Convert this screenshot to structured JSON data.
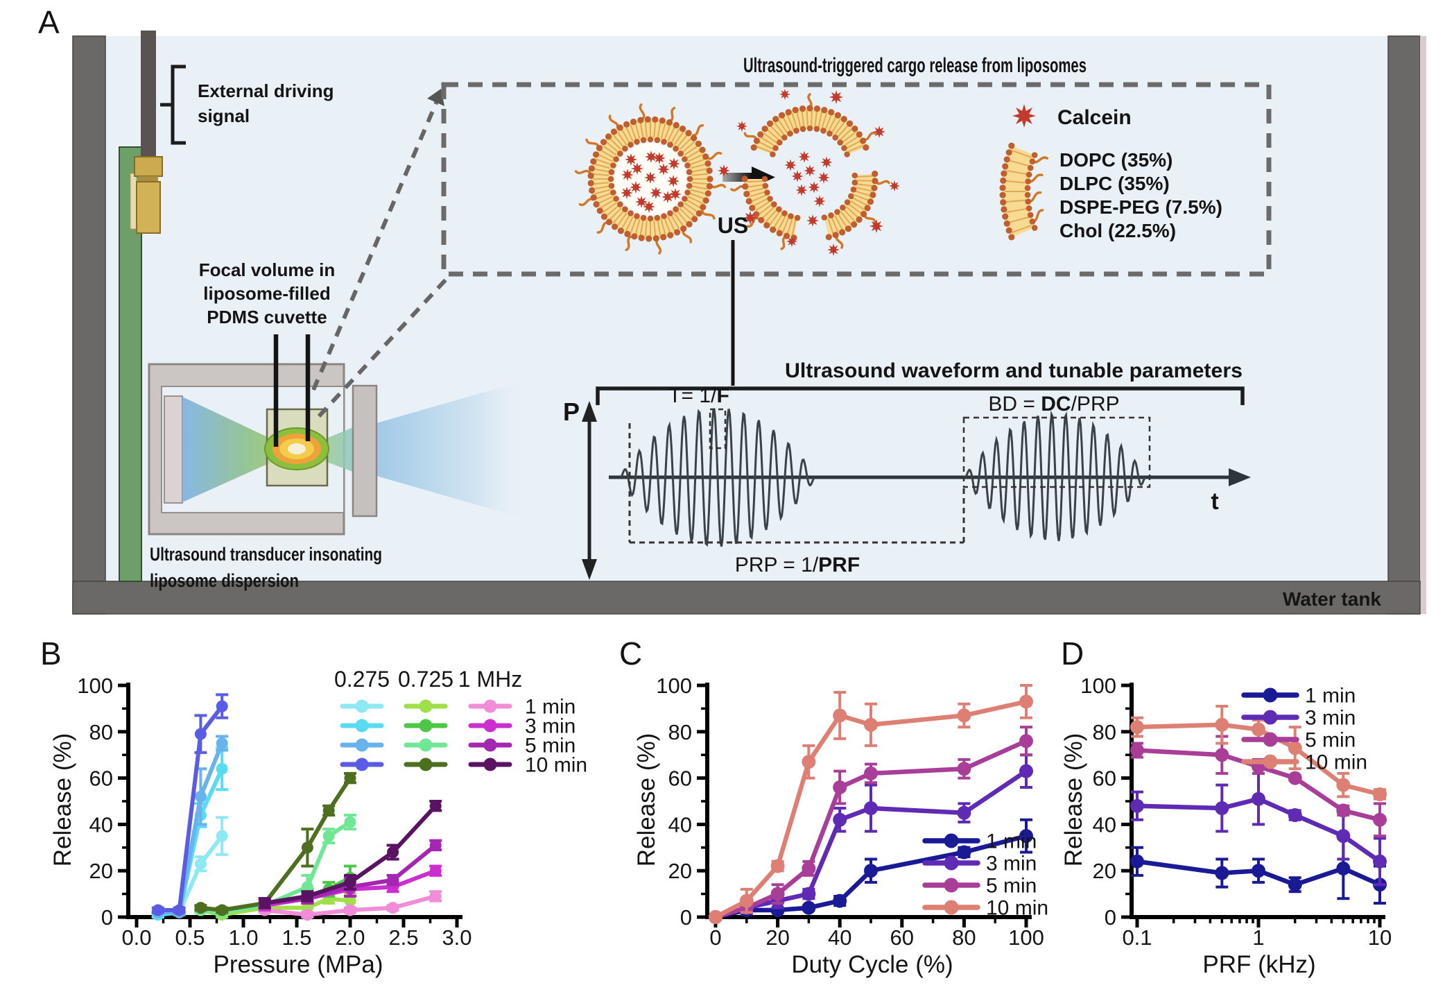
{
  "panel_a": {
    "label": "A",
    "water_tank_label": "Water tank",
    "background_color": "#e9f0f6",
    "tank_wall_color": "#6b6968",
    "external_driving_signal_lines": [
      "External driving",
      "signal"
    ],
    "focal_volume_lines": [
      "Focal volume in",
      "liposome-filled",
      "PDMS cuvette"
    ],
    "transducer_caption_lines": [
      "Ultrasound transducer insonating",
      "liposome dispersion"
    ],
    "inset": {
      "title": "Ultrasound-triggered cargo release from liposomes",
      "us_label": "US",
      "calcein_label": "Calcein",
      "calcein_color": "#c23a2b",
      "lipid_membrane_color": "#f8da92",
      "lipid_components": [
        "DOPC (35%)",
        "DLPC (35%)",
        "DSPE-PEG (7.5%)",
        "Chol (22.5%)"
      ]
    },
    "waveform": {
      "title": "Ultrasound waveform and tunable parameters",
      "pressure_axis_label": "P",
      "time_axis_label": "t",
      "period_label": {
        "pre": "T= 1/",
        "bold": "F",
        "post": ""
      },
      "burst_duration_label": {
        "pre": "BD = ",
        "bold": "DC",
        "post": "/PRP"
      },
      "pulse_repetition_label": {
        "pre": "PRP = 1/",
        "bold": "PRF",
        "post": ""
      }
    }
  },
  "chart_data": [
    {
      "id": "B",
      "panel_label": "B",
      "type": "line",
      "xlabel": "Pressure (MPa)",
      "ylabel": "Release (%)",
      "xlim": [
        0,
        3
      ],
      "ylim": [
        0,
        100
      ],
      "xticks": [
        0,
        0.5,
        1,
        1.5,
        2,
        2.5,
        3
      ],
      "xtick_labels": [
        "0.0",
        "0.5",
        "1.0",
        "1.5",
        "2.0",
        "2.5",
        "3.0"
      ],
      "yticks": [
        0,
        20,
        40,
        60,
        80,
        100
      ],
      "legend": {
        "group_headers": [
          {
            "label": "0.275",
            "color": "#2b2fd4"
          },
          {
            "label": "0.725",
            "color": "#4c7a55"
          },
          {
            "label": "1 MHz",
            "color": "#8c2596"
          }
        ],
        "row_labels": [
          "1 min",
          "3 min",
          "5 min",
          "10 min"
        ]
      },
      "series": [
        {
          "name": "0.275 MHz 1 min",
          "frequency_mhz": 0.275,
          "duration": "1 min",
          "color": "#8fe9f2",
          "x": [
            0.2,
            0.4,
            0.6,
            0.8
          ],
          "y": [
            1,
            2,
            23,
            35
          ],
          "err": [
            1,
            1,
            3,
            8
          ]
        },
        {
          "name": "0.275 MHz 3 min",
          "frequency_mhz": 0.275,
          "duration": "3 min",
          "color": "#59dbf2",
          "x": [
            0.2,
            0.4,
            0.6,
            0.8
          ],
          "y": [
            1,
            2,
            44,
            64
          ],
          "err": [
            0.5,
            1,
            5,
            9
          ]
        },
        {
          "name": "0.275 MHz 5 min",
          "frequency_mhz": 0.275,
          "duration": "5 min",
          "color": "#69b3ec",
          "x": [
            0.2,
            0.4,
            0.6,
            0.8
          ],
          "y": [
            2,
            2,
            52,
            75
          ],
          "err": [
            0.5,
            1,
            12,
            3
          ]
        },
        {
          "name": "0.275 MHz 10 min",
          "frequency_mhz": 0.275,
          "duration": "10 min",
          "color": "#5a5ce6",
          "x": [
            0.2,
            0.4,
            0.6,
            0.8
          ],
          "y": [
            3,
            3,
            79,
            91
          ],
          "err": [
            1,
            1,
            8,
            5
          ]
        },
        {
          "name": "0.725 MHz 1 min",
          "frequency_mhz": 0.725,
          "duration": "1 min",
          "color": "#9fdf49",
          "x": [
            0.6,
            0.8,
            1.2,
            1.6,
            1.8,
            2.0
          ],
          "y": [
            3,
            1,
            4,
            4,
            8,
            7
          ],
          "err": [
            1,
            1,
            2,
            2,
            2,
            3
          ]
        },
        {
          "name": "0.725 MHz 3 min",
          "frequency_mhz": 0.725,
          "duration": "3 min",
          "color": "#4cc847",
          "x": [
            0.6,
            0.8,
            1.2,
            1.6,
            1.8,
            2.0
          ],
          "y": [
            3,
            2,
            5,
            9,
            12,
            17
          ],
          "err": [
            1,
            1,
            2,
            3,
            3,
            5
          ]
        },
        {
          "name": "0.725 MHz 5 min",
          "frequency_mhz": 0.725,
          "duration": "5 min",
          "color": "#70e795",
          "x": [
            0.6,
            0.8,
            1.2,
            1.6,
            1.8,
            2.0
          ],
          "y": [
            3,
            2,
            5,
            13,
            35,
            41
          ],
          "err": [
            1,
            1,
            2,
            5,
            3,
            3
          ]
        },
        {
          "name": "0.725 MHz 10 min",
          "frequency_mhz": 0.725,
          "duration": "10 min",
          "color": "#4e6e20",
          "x": [
            0.6,
            0.8,
            1.2,
            1.6,
            1.8,
            2.0
          ],
          "y": [
            4,
            3,
            6,
            30,
            46,
            60
          ],
          "err": [
            1,
            1,
            2,
            8,
            2,
            2
          ]
        },
        {
          "name": "1 MHz 1 min",
          "frequency_mhz": 1,
          "duration": "1 min",
          "color": "#f08cd8",
          "x": [
            1.2,
            1.6,
            2.0,
            2.4,
            2.8
          ],
          "y": [
            3,
            1,
            3,
            4,
            9
          ],
          "err": [
            1,
            1,
            1,
            1,
            2
          ]
        },
        {
          "name": "1 MHz 3 min",
          "frequency_mhz": 1,
          "duration": "3 min",
          "color": "#cc2fd0",
          "x": [
            1.2,
            1.6,
            2.0,
            2.4,
            2.8
          ],
          "y": [
            5,
            8,
            12,
            13,
            20
          ],
          "err": [
            2,
            2,
            3,
            2,
            2
          ]
        },
        {
          "name": "1 MHz 5 min",
          "frequency_mhz": 1,
          "duration": "5 min",
          "color": "#a426b2",
          "x": [
            1.2,
            1.6,
            2.0,
            2.4,
            2.8
          ],
          "y": [
            6,
            8,
            13,
            16,
            31
          ],
          "err": [
            2,
            2,
            4,
            2,
            2
          ]
        },
        {
          "name": "1 MHz 10 min",
          "frequency_mhz": 1,
          "duration": "10 min",
          "color": "#5a1262",
          "x": [
            1.2,
            1.6,
            2.0,
            2.4,
            2.8
          ],
          "y": [
            6,
            9,
            15,
            28,
            48
          ],
          "err": [
            2,
            2,
            3,
            3,
            2
          ]
        }
      ]
    },
    {
      "id": "C",
      "panel_label": "C",
      "type": "line",
      "xlabel": "Duty Cycle (%)",
      "ylabel": "Release (%)",
      "xlim": [
        0,
        100
      ],
      "ylim": [
        0,
        100
      ],
      "xticks": [
        0,
        20,
        40,
        60,
        80,
        100
      ],
      "xtick_labels": [
        "0",
        "20",
        "40",
        "60",
        "80",
        "100"
      ],
      "yticks": [
        0,
        20,
        40,
        60,
        80,
        100
      ],
      "legend": {
        "row_labels": [
          "1 min",
          "3 min",
          "5 min",
          "10 min"
        ],
        "position": "bottom-right"
      },
      "series": [
        {
          "name": "1 min",
          "duration": "1 min",
          "color": "#1a1a96",
          "x": [
            0,
            10,
            20,
            30,
            40,
            50,
            80,
            100
          ],
          "y": [
            0,
            3,
            3,
            4,
            7,
            20,
            28,
            35
          ],
          "err": [
            1,
            2,
            1,
            1,
            2,
            5,
            2,
            7
          ]
        },
        {
          "name": "3 min",
          "duration": "3 min",
          "color": "#5f2bb4",
          "x": [
            0,
            10,
            20,
            30,
            40,
            50,
            80,
            100
          ],
          "y": [
            0,
            4,
            7,
            10,
            42,
            47,
            45,
            63
          ],
          "err": [
            1,
            2,
            3,
            2,
            5,
            10,
            4,
            7
          ]
        },
        {
          "name": "5 min",
          "duration": "5 min",
          "color": "#a93e99",
          "x": [
            0,
            10,
            20,
            30,
            40,
            50,
            80,
            100
          ],
          "y": [
            0,
            4,
            10,
            21,
            56,
            62,
            64,
            76
          ],
          "err": [
            1,
            2,
            4,
            3,
            7,
            4,
            4,
            6
          ]
        },
        {
          "name": "10 min",
          "duration": "10 min",
          "color": "#de7f74",
          "x": [
            0,
            10,
            20,
            30,
            40,
            50,
            80,
            100
          ],
          "y": [
            0,
            7,
            22,
            67,
            87,
            83,
            87,
            93
          ],
          "err": [
            1,
            5,
            2,
            7,
            10,
            9,
            5,
            7
          ]
        }
      ]
    },
    {
      "id": "D",
      "panel_label": "D",
      "type": "line",
      "xscale": "log",
      "xlabel": "PRF (kHz)",
      "ylabel": "Release (%)",
      "xlim": [
        0.1,
        10
      ],
      "ylim": [
        0,
        100
      ],
      "xticks": [
        0.1,
        1,
        10
      ],
      "xtick_labels": [
        "0.1",
        "1",
        "10"
      ],
      "yticks": [
        0,
        20,
        40,
        60,
        80,
        100
      ],
      "legend": {
        "row_labels": [
          "1 min",
          "3 min",
          "5 min",
          "10 min"
        ],
        "position": "top-right"
      },
      "series": [
        {
          "name": "1 min",
          "duration": "1 min",
          "color": "#1a1a96",
          "x": [
            0.1,
            0.5,
            1,
            2,
            5,
            10
          ],
          "y": [
            24,
            19,
            20,
            14,
            21,
            14
          ],
          "err": [
            6,
            6,
            5,
            3,
            13,
            8
          ]
        },
        {
          "name": "3 min",
          "duration": "3 min",
          "color": "#5f2bb4",
          "x": [
            0.1,
            0.5,
            1,
            2,
            5,
            10
          ],
          "y": [
            48,
            47,
            51,
            44,
            35,
            24
          ],
          "err": [
            6,
            10,
            11,
            2,
            10,
            10
          ]
        },
        {
          "name": "5 min",
          "duration": "5 min",
          "color": "#a93e99",
          "x": [
            0.1,
            0.5,
            1,
            2,
            5,
            10
          ],
          "y": [
            72,
            70,
            65,
            60,
            46,
            42
          ],
          "err": [
            3,
            8,
            3,
            1,
            2,
            7
          ]
        },
        {
          "name": "10 min",
          "duration": "10 min",
          "color": "#de7f74",
          "x": [
            0.1,
            0.5,
            1,
            2,
            5,
            10
          ],
          "y": [
            82,
            83,
            81,
            73,
            57,
            53
          ],
          "err": [
            4,
            8,
            4,
            9,
            5,
            2
          ]
        }
      ]
    }
  ]
}
